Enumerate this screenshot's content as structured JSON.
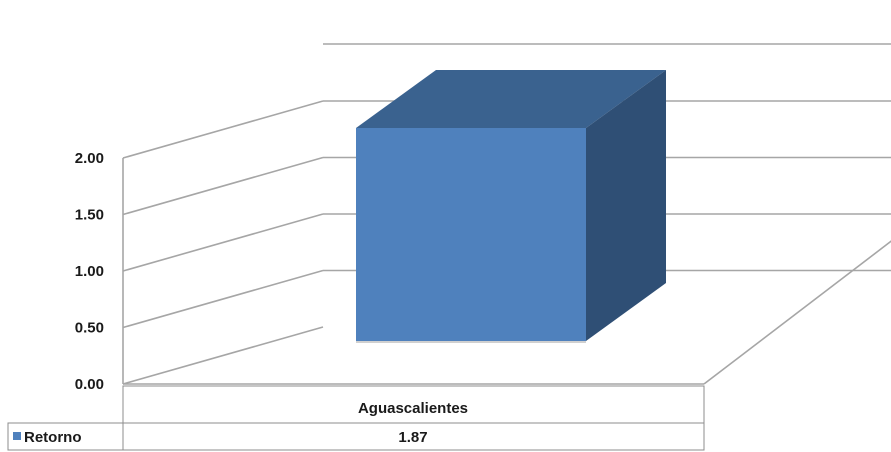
{
  "chart_data": {
    "type": "bar",
    "style": "3d-column-with-data-table",
    "categories": [
      "Aguascalientes"
    ],
    "series": [
      {
        "name": "Retorno",
        "values": [
          1.87
        ],
        "color": "#4f81bd"
      }
    ],
    "ylim": [
      0,
      2.0
    ],
    "yticks": [
      "0.00",
      "0.50",
      "1.00",
      "1.50",
      "2.00"
    ],
    "grid": true,
    "legend": "data-table-left"
  },
  "colors": {
    "front": "#4f81bd",
    "side": "#2f4f75",
    "top": "#3a628f",
    "grid": "#a6a6a6",
    "table_border": "#8c8c8c"
  }
}
